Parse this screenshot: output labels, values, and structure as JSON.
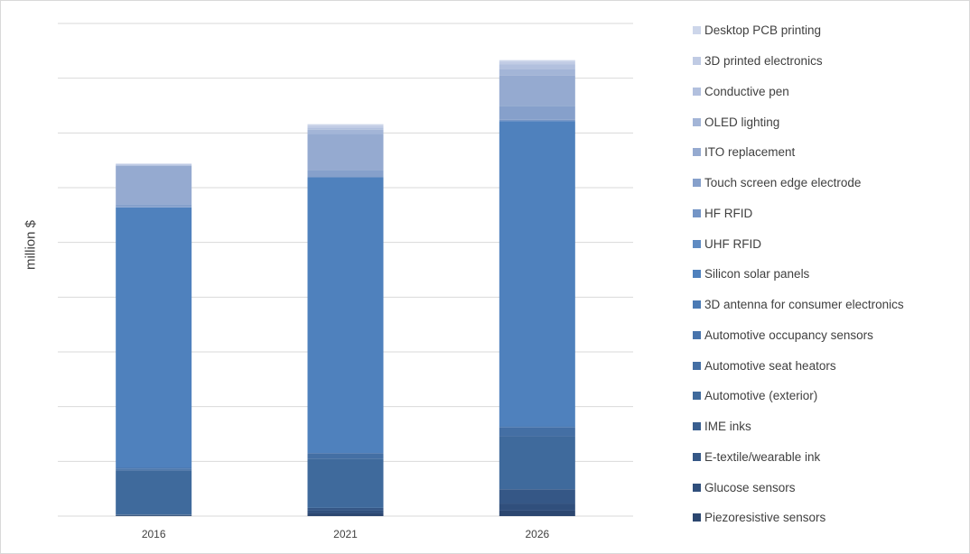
{
  "chart_data": {
    "type": "bar",
    "stacked": true,
    "title": "",
    "xlabel": "",
    "ylabel": "million $",
    "ylim": [
      0,
      9
    ],
    "y_tick_labels_shown": false,
    "grid": true,
    "legend_position": "right",
    "categories": [
      "2016",
      "2021",
      "2026"
    ],
    "series": [
      {
        "name": "Piezoresistive sensors",
        "color": "#2c4770",
        "values": [
          0.01,
          0.05,
          0.1
        ]
      },
      {
        "name": "Glucose sensors",
        "color": "#304f7c",
        "values": [
          0.01,
          0.05,
          0.13
        ]
      },
      {
        "name": "E-textile/wearable ink",
        "color": "#355786",
        "values": [
          0.01,
          0.05,
          0.26
        ]
      },
      {
        "name": "IME inks",
        "color": "#395e8f",
        "values": [
          0.0,
          0.0,
          0.0
        ]
      },
      {
        "name": "Automotive (exterior)",
        "color": "#3f6a9c",
        "values": [
          0.8,
          0.9,
          0.97
        ]
      },
      {
        "name": "Automotive seat heators",
        "color": "#446fa4",
        "values": [
          0.02,
          0.1,
          0.16
        ]
      },
      {
        "name": "Automotive occupancy sensors",
        "color": "#4874ac",
        "values": [
          0.02,
          0.0,
          0.0
        ]
      },
      {
        "name": "3D antenna for consumer electronics",
        "color": "#4b7ab4",
        "values": [
          0.02,
          0.0,
          0.02
        ]
      },
      {
        "name": "Silicon solar panels",
        "color": "#4f81bd",
        "values": [
          4.75,
          5.04,
          5.57
        ]
      },
      {
        "name": "UHF RFID",
        "color": "#5f8bc2",
        "values": [
          0.0,
          0.0,
          0.01
        ]
      },
      {
        "name": "HF RFID",
        "color": "#7495c6",
        "values": [
          0.01,
          0.0,
          0.02
        ]
      },
      {
        "name": "Touch screen edge electrode",
        "color": "#86a0cb",
        "values": [
          0.05,
          0.13,
          0.25
        ]
      },
      {
        "name": "ITO replacement",
        "color": "#95aad0",
        "values": [
          0.7,
          0.66,
          0.56
        ]
      },
      {
        "name": "OLED lighting",
        "color": "#a3b5d7",
        "values": [
          0.01,
          0.08,
          0.12
        ]
      },
      {
        "name": "Conductive pen",
        "color": "#b2c0de",
        "values": [
          0.01,
          0.04,
          0.08
        ]
      },
      {
        "name": "3D printed electronics",
        "color": "#c0cbe4",
        "values": [
          0.0,
          0.03,
          0.05
        ]
      },
      {
        "name": "Desktop PCB printing",
        "color": "#cdd6ea",
        "values": [
          0.02,
          0.03,
          0.03
        ]
      }
    ]
  }
}
